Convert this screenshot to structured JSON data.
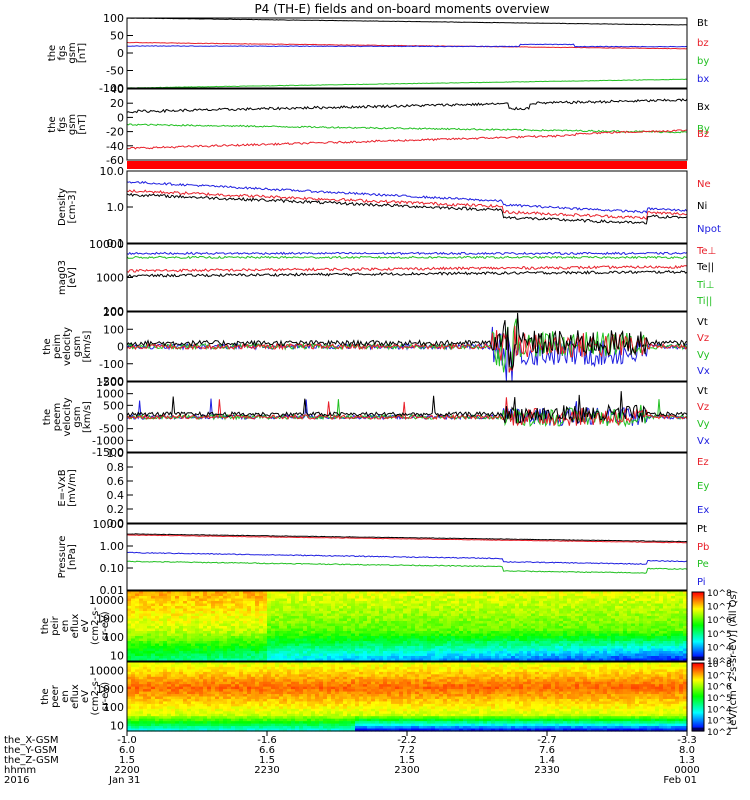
{
  "title": "P4 (TH-E) fields and on-board moments overview",
  "colorbar_label": "[eV/(cm^2-s-sr-eV)] (All Qs)",
  "chart_data": [
    {
      "type": "line",
      "ylabel": [
        "the",
        "fgs",
        "gsm",
        "[nT]"
      ],
      "ylim": [
        -100,
        100
      ],
      "yticks": [
        "100",
        "50",
        "0",
        "-50",
        "-100"
      ],
      "legend": [
        {
          "name": "Bt",
          "color": "#000000"
        },
        {
          "name": "bz",
          "color": "#e8202a"
        },
        {
          "name": "by",
          "color": "#22c022"
        },
        {
          "name": "bx",
          "color": "#2020e0"
        }
      ]
    },
    {
      "type": "line",
      "ylabel": [
        "the",
        "fgs",
        "gsm",
        "[nT]"
      ],
      "ylim": [
        -70,
        40
      ],
      "yticks": [
        "40",
        "20",
        "0",
        "-20",
        "-40",
        "-60"
      ],
      "legend": [
        {
          "name": "Bx",
          "color": "#000000"
        },
        {
          "name": "By",
          "color": "#22c022"
        },
        {
          "name": "Bz",
          "color": "#e8202a"
        }
      ]
    },
    {
      "type": "line",
      "ylabel": [
        "Density",
        "[cm-3]"
      ],
      "log": true,
      "ylim": [
        0.1,
        10
      ],
      "yticks": [
        "10.0",
        "1.0",
        "0.1"
      ],
      "legend": [
        {
          "name": "Ne",
          "color": "#e8202a"
        },
        {
          "name": "Ni",
          "color": "#000000"
        },
        {
          "name": "Npot",
          "color": "#2020e0"
        }
      ]
    },
    {
      "type": "line",
      "ylabel": [
        "mag03",
        "[eV]"
      ],
      "log": true,
      "ylim": [
        100,
        10000
      ],
      "yticks": [
        "10000",
        "1000",
        "100"
      ],
      "legend": [
        {
          "name": "Te⊥",
          "color": "#e8202a"
        },
        {
          "name": "Te||",
          "color": "#000000"
        },
        {
          "name": "Ti⊥",
          "color": "#22c022"
        },
        {
          "name": "Ti||",
          "color": "#22c022"
        }
      ]
    },
    {
      "type": "line",
      "ylabel": [
        "the",
        "peim",
        "velocity",
        "gsm",
        "[km/s]"
      ],
      "ylim": [
        -200,
        200
      ],
      "yticks": [
        "200",
        "100",
        "0",
        "-100",
        "-200"
      ],
      "legend": [
        {
          "name": "Vt",
          "color": "#000000"
        },
        {
          "name": "Vz",
          "color": "#e8202a"
        },
        {
          "name": "Vy",
          "color": "#22c022"
        },
        {
          "name": "Vx",
          "color": "#2020e0"
        }
      ]
    },
    {
      "type": "line",
      "ylabel": [
        "the",
        "peem",
        "velocity",
        "gsm",
        "[km/s]"
      ],
      "ylim": [
        -1500,
        1500
      ],
      "yticks": [
        "1500",
        "1000",
        "500",
        "0",
        "-500",
        "-1000",
        "-1500"
      ],
      "legend": [
        {
          "name": "Vt",
          "color": "#000000"
        },
        {
          "name": "Vz",
          "color": "#e8202a"
        },
        {
          "name": "Vy",
          "color": "#22c022"
        },
        {
          "name": "Vx",
          "color": "#2020e0"
        }
      ]
    },
    {
      "type": "line",
      "ylabel": [
        "E=-VxB",
        "[mV/m]"
      ],
      "ylim": [
        0,
        1
      ],
      "yticks": [
        "1.0",
        "0.8",
        "0.6",
        "0.4",
        "0.2",
        "0.0"
      ],
      "legend": [
        {
          "name": "Ez",
          "color": "#e8202a"
        },
        {
          "name": "Ey",
          "color": "#22c022"
        },
        {
          "name": "Ex",
          "color": "#2020e0"
        }
      ]
    },
    {
      "type": "line",
      "ylabel": [
        "Pressure",
        "[nPa]"
      ],
      "log": true,
      "ylim": [
        0.01,
        10
      ],
      "yticks": [
        "10.00",
        "1.00",
        "0.10",
        "0.01"
      ],
      "legend": [
        {
          "name": "Pt",
          "color": "#000000"
        },
        {
          "name": "Pb",
          "color": "#e8202a"
        },
        {
          "name": "Pe",
          "color": "#22c022"
        },
        {
          "name": "Pi",
          "color": "#2020e0"
        }
      ]
    },
    {
      "type": "heatmap",
      "ylabel": [
        "the",
        "peir",
        "en",
        "eflux",
        "eV",
        "(cm2-s-",
        "sr-eV)"
      ],
      "log": true,
      "ylim": [
        5,
        30000
      ],
      "yticks": [
        "10000",
        "1000",
        "100",
        "10"
      ]
    },
    {
      "type": "heatmap",
      "ylabel": [
        "the",
        "peer",
        "en",
        "eflux",
        "eV",
        "(cm2-s-",
        "sr-eV)"
      ],
      "log": true,
      "ylim": [
        5,
        30000
      ],
      "yticks": [
        "10000",
        "1000",
        "100",
        "10"
      ]
    }
  ],
  "colorbar": {
    "top_ticks": [
      "10^8",
      "10^7",
      "10^6",
      "10^5",
      "10^4",
      "10^3"
    ],
    "bottom_ticks": [
      "10^8",
      "10^7",
      "10^6",
      "10^5",
      "10^4",
      "10^3",
      "10^2"
    ]
  },
  "xaxis": {
    "row_labels": [
      "the_X-GSM",
      "the_Y-GSM",
      "the_Z-GSM",
      "hhmm",
      "2016"
    ],
    "columns": [
      [
        "-1.0",
        "6.0",
        "1.5",
        "2200",
        "Jan 31"
      ],
      [
        "-1.6",
        "6.6",
        "1.5",
        "2230",
        ""
      ],
      [
        "-2.2",
        "7.2",
        "1.5",
        "2300",
        ""
      ],
      [
        "-2.7",
        "7.6",
        "1.4",
        "2330",
        ""
      ],
      [
        "-3.3",
        "8.0",
        "1.3",
        "0000",
        "Feb 01"
      ]
    ]
  }
}
